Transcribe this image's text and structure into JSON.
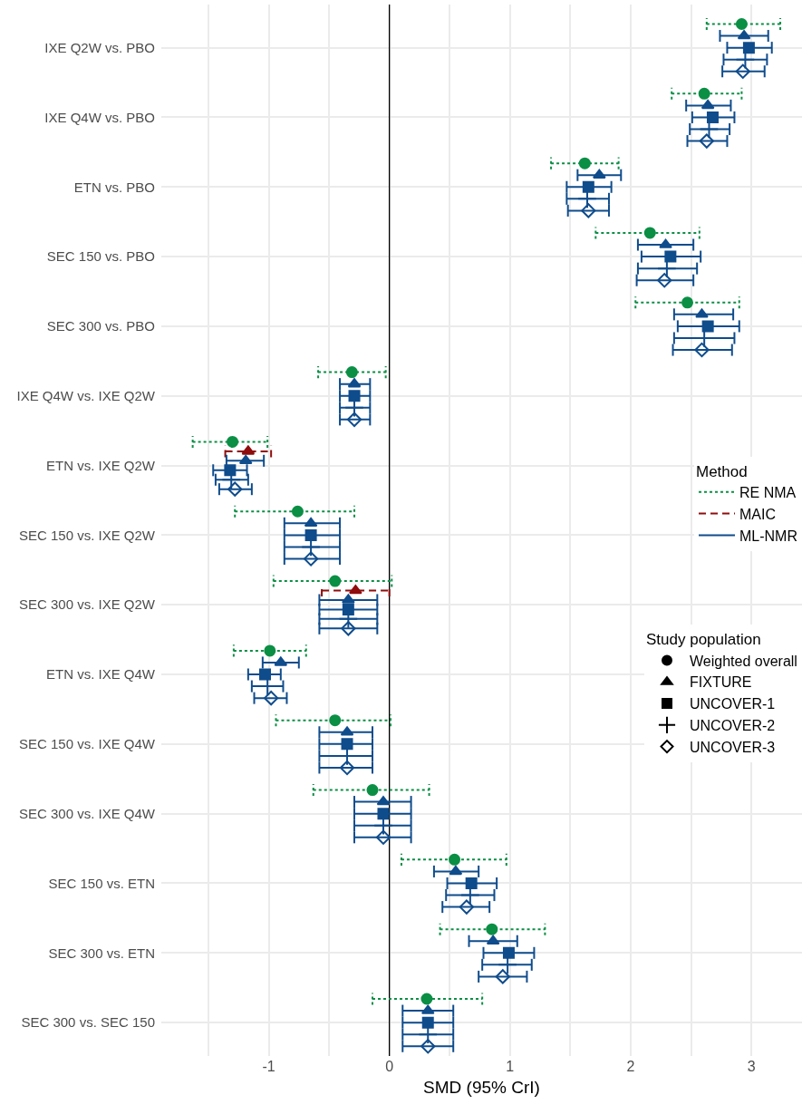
{
  "chart_data": {
    "type": "scatter",
    "orientation": "horizontal",
    "xlabel": "SMD (95% CrI)",
    "legend_title": [
      "Method",
      "Study population"
    ],
    "legend": "right",
    "grid": true,
    "categories": [
      "IXE Q2W vs. PBO",
      "IXE Q4W vs. PBO",
      "ETN vs. PBO",
      "SEC 150 vs. PBO",
      "SEC 300 vs. PBO",
      "IXE Q4W vs. IXE Q2W",
      "ETN vs. IXE Q2W",
      "SEC 150 vs. IXE Q2W",
      "SEC 300 vs. IXE Q2W",
      "ETN vs. IXE Q4W",
      "SEC 150 vs. IXE Q4W",
      "SEC 300 vs. IXE Q4W",
      "SEC 150 vs. ETN",
      "SEC 300 vs. ETN",
      "SEC 300 vs. SEC 150"
    ],
    "xlim": [
      -1.89,
      3.42
    ],
    "xticks": [
      {
        "value": -1.5,
        "label": null
      },
      -1,
      {
        "value": -0.5,
        "label": null
      },
      0,
      {
        "value": 0.5,
        "label": null
      },
      1,
      {
        "value": 1.5,
        "label": null
      },
      2,
      {
        "value": 2.5,
        "label": null
      },
      3
    ],
    "ref_lines": [
      {
        "axis": "x",
        "value": 0,
        "color": "#000000"
      }
    ],
    "annotations": [
      "Weighted overall",
      "FIXTURE",
      "UNCOVER-1",
      "UNCOVER-2",
      "UNCOVER-3"
    ],
    "series": [
      {
        "name": "RE NMA",
        "color": "#0b8f45",
        "marker": "circle",
        "line_style": "dotted",
        "values": [
          2.92,
          2.61,
          1.62,
          2.16,
          2.47,
          -0.31,
          -1.3,
          -0.76,
          -0.45,
          -0.99,
          -0.45,
          -0.14,
          0.54,
          0.85,
          0.31
        ],
        "errors": [
          [
            2.63,
            3.24
          ],
          [
            2.34,
            2.92
          ],
          [
            1.34,
            1.9
          ],
          [
            1.71,
            2.57
          ],
          [
            2.04,
            2.9
          ],
          [
            -0.59,
            -0.03
          ],
          [
            -1.63,
            -1.01
          ],
          [
            -1.28,
            -0.29
          ],
          [
            -0.96,
            0.02
          ],
          [
            -1.29,
            -0.69
          ],
          [
            -0.94,
            0.01
          ],
          [
            -0.63,
            0.33
          ],
          [
            0.1,
            0.97
          ],
          [
            0.42,
            1.29
          ],
          [
            -0.14,
            0.77
          ]
        ]
      },
      {
        "name": "MAIC",
        "color": "#8f0d0d",
        "marker": "triangle",
        "line_style": "dashed",
        "values": [
          null,
          null,
          null,
          null,
          null,
          null,
          -1.17,
          null,
          -0.28,
          null,
          null,
          null,
          null,
          null,
          null
        ],
        "errors": [
          null,
          null,
          null,
          null,
          null,
          null,
          [
            -1.36,
            -0.98
          ],
          null,
          [
            -0.56,
            0.0
          ],
          null,
          null,
          null,
          null,
          null,
          null
        ]
      },
      {
        "name": "ML-NMR",
        "color": "#0f4c8c",
        "marker": "triangle",
        "line_style": "solid",
        "values": [
          2.94,
          2.64,
          1.74,
          2.29,
          2.59,
          -0.29,
          -1.19,
          -0.65,
          -0.34,
          -0.9,
          -0.35,
          -0.05,
          0.55,
          0.86,
          0.32
        ],
        "errors": [
          [
            2.74,
            3.14
          ],
          [
            2.46,
            2.83
          ],
          [
            1.56,
            1.92
          ],
          [
            2.06,
            2.52
          ],
          [
            2.36,
            2.85
          ],
          [
            -0.41,
            -0.16
          ],
          [
            -1.35,
            -1.04
          ],
          [
            -0.87,
            -0.41
          ],
          [
            -0.58,
            -0.1
          ],
          [
            -1.05,
            -0.75
          ],
          [
            -0.58,
            -0.14
          ],
          [
            -0.29,
            0.18
          ],
          [
            0.37,
            0.74
          ],
          [
            0.66,
            1.06
          ],
          [
            0.11,
            0.53
          ]
        ]
      },
      {
        "color": "#0f4c8c",
        "marker": "square",
        "line_style": "solid",
        "values": [
          2.98,
          2.68,
          1.65,
          2.33,
          2.64,
          -0.29,
          -1.32,
          -0.65,
          -0.34,
          -1.03,
          -0.35,
          -0.05,
          0.68,
          0.99,
          0.32
        ],
        "errors": [
          [
            2.8,
            3.17
          ],
          [
            2.51,
            2.86
          ],
          [
            1.47,
            1.84
          ],
          [
            2.09,
            2.58
          ],
          [
            2.39,
            2.9
          ],
          [
            -0.41,
            -0.16
          ],
          [
            -1.46,
            -1.18
          ],
          [
            -0.87,
            -0.41
          ],
          [
            -0.58,
            -0.1
          ],
          [
            -1.17,
            -0.9
          ],
          [
            -0.58,
            -0.14
          ],
          [
            -0.29,
            0.18
          ],
          [
            0.48,
            0.89
          ],
          [
            0.78,
            1.2
          ],
          [
            0.11,
            0.53
          ]
        ]
      },
      {
        "color": "#0f4c8c",
        "marker": "cross",
        "line_style": "solid",
        "values": [
          2.95,
          2.65,
          1.64,
          2.3,
          2.61,
          -0.29,
          -1.31,
          -0.65,
          -0.34,
          -1.01,
          -0.35,
          -0.05,
          0.67,
          0.98,
          0.32
        ],
        "errors": [
          [
            2.77,
            3.13
          ],
          [
            2.49,
            2.82
          ],
          [
            1.47,
            1.82
          ],
          [
            2.06,
            2.55
          ],
          [
            2.36,
            2.86
          ],
          [
            -0.41,
            -0.16
          ],
          [
            -1.44,
            -1.17
          ],
          [
            -0.87,
            -0.41
          ],
          [
            -0.58,
            -0.1
          ],
          [
            -1.14,
            -0.88
          ],
          [
            -0.58,
            -0.14
          ],
          [
            -0.29,
            0.18
          ],
          [
            0.47,
            0.87
          ],
          [
            0.77,
            1.18
          ],
          [
            0.11,
            0.53
          ]
        ]
      },
      {
        "color": "#0f4c8c",
        "marker": "diamond",
        "line_style": "solid",
        "values": [
          2.93,
          2.63,
          1.65,
          2.28,
          2.59,
          -0.29,
          -1.28,
          -0.65,
          -0.34,
          -0.98,
          -0.35,
          -0.05,
          0.64,
          0.94,
          0.32
        ],
        "errors": [
          [
            2.76,
            3.11
          ],
          [
            2.47,
            2.8
          ],
          [
            1.48,
            1.82
          ],
          [
            2.05,
            2.52
          ],
          [
            2.35,
            2.84
          ],
          [
            -0.41,
            -0.16
          ],
          [
            -1.41,
            -1.14
          ],
          [
            -0.87,
            -0.41
          ],
          [
            -0.58,
            -0.1
          ],
          [
            -1.12,
            -0.85
          ],
          [
            -0.58,
            -0.14
          ],
          [
            -0.29,
            0.18
          ],
          [
            0.44,
            0.83
          ],
          [
            0.74,
            1.14
          ],
          [
            0.11,
            0.53
          ]
        ]
      }
    ]
  }
}
